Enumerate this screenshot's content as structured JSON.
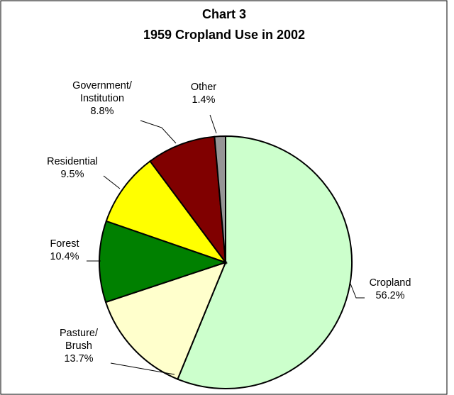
{
  "chart_data": {
    "type": "pie",
    "title": "Chart 3",
    "subtitle": "1959 Cropland Use in 2002",
    "legend": "none",
    "slices": [
      {
        "label": [
          "Cropland"
        ],
        "percent_text": "56.2%",
        "value": 56.2,
        "color": "#ccffcc"
      },
      {
        "label": [
          "Pasture/",
          "Brush"
        ],
        "percent_text": "13.7%",
        "value": 13.7,
        "color": "#ffffcc"
      },
      {
        "label": [
          "Forest"
        ],
        "percent_text": "10.4%",
        "value": 10.4,
        "color": "#008000"
      },
      {
        "label": [
          "Residential"
        ],
        "percent_text": "9.5%",
        "value": 9.5,
        "color": "#ffff00"
      },
      {
        "label": [
          "Government/",
          "Institution"
        ],
        "percent_text": "8.8%",
        "value": 8.8,
        "color": "#800000"
      },
      {
        "label": [
          "Other"
        ],
        "percent_text": "1.4%",
        "value": 1.4,
        "color": "#969696"
      }
    ]
  }
}
